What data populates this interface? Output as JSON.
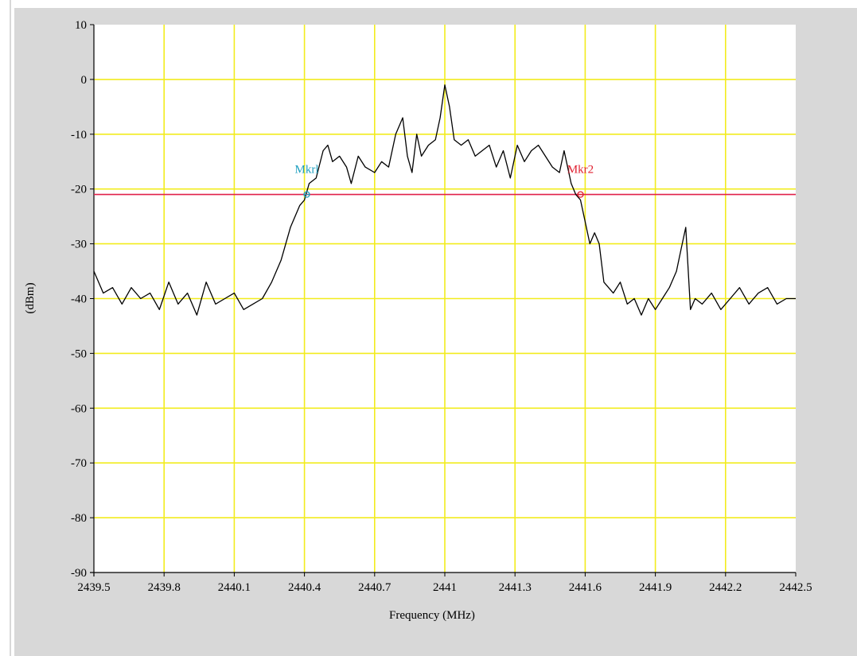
{
  "chart_data": {
    "type": "line",
    "xlabel": "Frequency (MHz)",
    "ylabel": "(dBm)",
    "xlim": [
      2439.5,
      2442.5
    ],
    "ylim": [
      -90,
      10
    ],
    "x_ticks": [
      "2439.5",
      "2439.8",
      "2440.1",
      "2440.4",
      "2440.7",
      "2441",
      "2441.3",
      "2441.6",
      "2441.9",
      "2442.2",
      "2442.5"
    ],
    "y_ticks": [
      "10",
      "0",
      "-10",
      "-20",
      "-30",
      "-40",
      "-50",
      "-60",
      "-70",
      "-80",
      "-90"
    ],
    "grid": true,
    "colors": {
      "plot_bg": "#ffffff",
      "grid": "#f2ec1e",
      "trace": "#000000",
      "threshold": "#e0204a",
      "mkr1": "#1e9fbf",
      "mkr2": "#e02030",
      "panel_bg": "#d8d8d8"
    },
    "threshold": {
      "y": -21
    },
    "markers": [
      {
        "label": "Mkrl",
        "x": 2440.41,
        "y": -21
      },
      {
        "label": "Mkr2",
        "x": 2441.58,
        "y": -21
      }
    ],
    "series": [
      {
        "x": [
          2439.5,
          2439.54,
          2439.58,
          2439.62,
          2439.66,
          2439.7,
          2439.74,
          2439.78,
          2439.82,
          2439.86,
          2439.9,
          2439.94,
          2439.98,
          2440.02,
          2440.06,
          2440.1,
          2440.14,
          2440.18,
          2440.22,
          2440.26,
          2440.3,
          2440.34,
          2440.38,
          2440.4,
          2440.42,
          2440.45,
          2440.48,
          2440.5,
          2440.52,
          2440.55,
          2440.58,
          2440.6,
          2440.63,
          2440.66,
          2440.7,
          2440.73,
          2440.76,
          2440.79,
          2440.82,
          2440.84,
          2440.86,
          2440.88,
          2440.9,
          2440.93,
          2440.96,
          2440.98,
          2441.0,
          2441.02,
          2441.04,
          2441.07,
          2441.1,
          2441.13,
          2441.16,
          2441.19,
          2441.22,
          2441.25,
          2441.28,
          2441.31,
          2441.34,
          2441.37,
          2441.4,
          2441.43,
          2441.46,
          2441.49,
          2441.51,
          2441.54,
          2441.56,
          2441.58,
          2441.6,
          2441.62,
          2441.64,
          2441.66,
          2441.68,
          2441.7,
          2441.72,
          2441.75,
          2441.78,
          2441.81,
          2441.84,
          2441.87,
          2441.9,
          2441.93,
          2441.96,
          2441.99,
          2442.01,
          2442.03,
          2442.05,
          2442.07,
          2442.1,
          2442.14,
          2442.18,
          2442.22,
          2442.26,
          2442.3,
          2442.34,
          2442.38,
          2442.42,
          2442.46,
          2442.5
        ],
        "y": [
          -35,
          -39,
          -38,
          -41,
          -38,
          -40,
          -39,
          -42,
          -37,
          -41,
          -39,
          -43,
          -37,
          -41,
          -40,
          -39,
          -42,
          -41,
          -40,
          -37,
          -33,
          -27,
          -23,
          -22,
          -19,
          -18,
          -13,
          -12,
          -15,
          -14,
          -16,
          -19,
          -14,
          -16,
          -17,
          -15,
          -16,
          -10,
          -7,
          -14,
          -17,
          -10,
          -14,
          -12,
          -11,
          -7,
          -1,
          -5,
          -11,
          -12,
          -11,
          -14,
          -13,
          -12,
          -16,
          -13,
          -18,
          -12,
          -15,
          -13,
          -12,
          -14,
          -16,
          -17,
          -13,
          -19,
          -21,
          -22,
          -26,
          -30,
          -28,
          -30,
          -37,
          -38,
          -39,
          -37,
          -41,
          -40,
          -43,
          -40,
          -42,
          -40,
          -38,
          -35,
          -31,
          -27,
          -42,
          -40,
          -41,
          -39,
          -42,
          -40,
          -38,
          -41,
          -39,
          -38,
          -41,
          -40,
          -40
        ]
      }
    ]
  }
}
